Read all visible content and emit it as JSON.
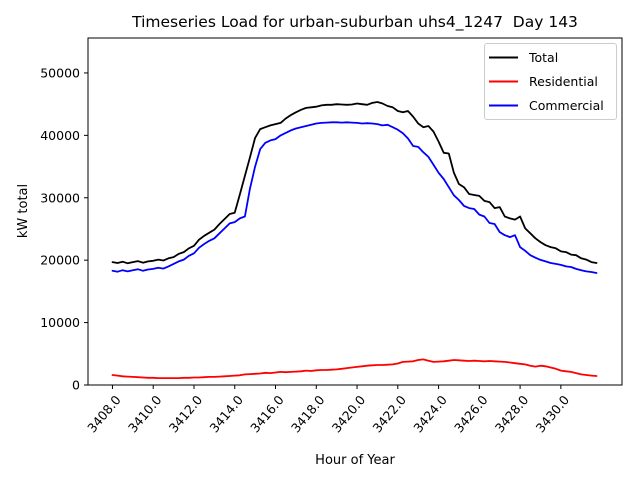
{
  "figure": {
    "background": "#ffffff",
    "axes_edge_color": "#000000",
    "legend_border_color": "#cccccc"
  },
  "chart_data": {
    "type": "line",
    "title": "Timeseries Load for urban-suburban uhs4_1247  Day 143",
    "xlabel": "Hour of Year",
    "ylabel": "kW total",
    "xlim": [
      3406.8,
      3433.0
    ],
    "ylim": [
      0,
      55600
    ],
    "grid": false,
    "legend_position": "upper right",
    "xticks": {
      "values": [
        3408,
        3410,
        3412,
        3414,
        3416,
        3418,
        3420,
        3422,
        3424,
        3426,
        3428,
        3430
      ],
      "labels": [
        "3408.0",
        "3410.0",
        "3412.0",
        "3414.0",
        "3416.0",
        "3418.0",
        "3420.0",
        "3422.0",
        "3424.0",
        "3426.0",
        "3428.0",
        "3430.0"
      ]
    },
    "yticks": {
      "values": [
        0,
        10000,
        20000,
        30000,
        40000,
        50000
      ],
      "labels": [
        "0",
        "10000",
        "20000",
        "30000",
        "40000",
        "50000"
      ]
    },
    "x": [
      3408.0,
      3408.25,
      3408.5,
      3408.75,
      3409.0,
      3409.25,
      3409.5,
      3409.75,
      3410.0,
      3410.25,
      3410.5,
      3410.75,
      3411.0,
      3411.25,
      3411.5,
      3411.75,
      3412.0,
      3412.25,
      3412.5,
      3412.75,
      3413.0,
      3413.25,
      3413.5,
      3413.75,
      3414.0,
      3414.25,
      3414.5,
      3414.75,
      3415.0,
      3415.25,
      3415.5,
      3415.75,
      3416.0,
      3416.25,
      3416.5,
      3416.75,
      3417.0,
      3417.25,
      3417.5,
      3417.75,
      3418.0,
      3418.25,
      3418.5,
      3418.75,
      3419.0,
      3419.25,
      3419.5,
      3419.75,
      3420.0,
      3420.25,
      3420.5,
      3420.75,
      3421.0,
      3421.25,
      3421.5,
      3421.75,
      3422.0,
      3422.25,
      3422.5,
      3422.75,
      3423.0,
      3423.25,
      3423.5,
      3423.75,
      3424.0,
      3424.25,
      3424.5,
      3424.75,
      3425.0,
      3425.25,
      3425.5,
      3425.75,
      3426.0,
      3426.25,
      3426.5,
      3426.75,
      3427.0,
      3427.25,
      3427.5,
      3427.75,
      3428.0,
      3428.25,
      3428.5,
      3428.75,
      3429.0,
      3429.25,
      3429.5,
      3429.75,
      3430.0,
      3430.25,
      3430.5,
      3430.75,
      3431.0,
      3431.25,
      3431.5,
      3431.75
    ],
    "series": [
      {
        "name": "Total",
        "color": "#000000",
        "values": [
          19700,
          19550,
          19750,
          19500,
          19700,
          19850,
          19600,
          19800,
          19900,
          20100,
          19950,
          20300,
          20500,
          21000,
          21300,
          21900,
          22300,
          23300,
          23900,
          24400,
          24900,
          25800,
          26600,
          27400,
          27600,
          30500,
          33500,
          36500,
          39600,
          41000,
          41300,
          41600,
          41800,
          42000,
          42700,
          43250,
          43700,
          44100,
          44400,
          44500,
          44600,
          44800,
          44900,
          44900,
          45000,
          44950,
          44900,
          44950,
          45100,
          45000,
          44900,
          45200,
          45350,
          45100,
          44700,
          44500,
          43900,
          43700,
          43900,
          43000,
          41900,
          41300,
          41500,
          40600,
          39000,
          37200,
          37100,
          34000,
          32200,
          31700,
          30600,
          30450,
          30300,
          29500,
          29300,
          28350,
          28500,
          27000,
          26700,
          26500,
          27000,
          25100,
          24300,
          23500,
          22900,
          22400,
          22100,
          21900,
          21400,
          21300,
          20900,
          20800,
          20300,
          20100,
          19700,
          19550
        ]
      },
      {
        "name": "Residential",
        "color": "#ff0000",
        "values": [
          1600,
          1500,
          1400,
          1350,
          1300,
          1250,
          1200,
          1150,
          1150,
          1100,
          1100,
          1100,
          1100,
          1100,
          1150,
          1150,
          1200,
          1200,
          1250,
          1300,
          1300,
          1350,
          1400,
          1450,
          1500,
          1550,
          1700,
          1750,
          1800,
          1850,
          1950,
          1900,
          2000,
          2100,
          2050,
          2100,
          2150,
          2200,
          2300,
          2250,
          2350,
          2400,
          2400,
          2450,
          2500,
          2600,
          2700,
          2800,
          2900,
          3000,
          3100,
          3150,
          3200,
          3200,
          3250,
          3300,
          3450,
          3700,
          3750,
          3800,
          4000,
          4100,
          3900,
          3700,
          3750,
          3800,
          3900,
          4000,
          3950,
          3900,
          3850,
          3900,
          3850,
          3800,
          3850,
          3800,
          3750,
          3700,
          3600,
          3500,
          3400,
          3300,
          3100,
          2950,
          3100,
          3000,
          2800,
          2600,
          2300,
          2200,
          2100,
          1900,
          1700,
          1600,
          1500,
          1450
        ]
      },
      {
        "name": "Commercial",
        "color": "#0000ff",
        "values": [
          18300,
          18150,
          18400,
          18200,
          18400,
          18550,
          18300,
          18500,
          18600,
          18800,
          18650,
          19000,
          19400,
          19800,
          20100,
          20700,
          21100,
          22000,
          22600,
          23100,
          23500,
          24300,
          25100,
          25900,
          26100,
          26700,
          27000,
          31500,
          35000,
          37800,
          38800,
          39200,
          39400,
          40000,
          40400,
          40800,
          41100,
          41300,
          41500,
          41700,
          41900,
          42000,
          42050,
          42100,
          42100,
          42050,
          42100,
          42050,
          42000,
          41900,
          41950,
          41900,
          41800,
          41600,
          41700,
          41300,
          40900,
          40350,
          39500,
          38300,
          38150,
          37300,
          36550,
          35300,
          34000,
          33000,
          31700,
          30400,
          29650,
          28700,
          28350,
          28200,
          27300,
          27000,
          25950,
          25800,
          24500,
          24000,
          23700,
          24000,
          22100,
          21500,
          20800,
          20400,
          20050,
          19800,
          19550,
          19400,
          19250,
          19000,
          18900,
          18600,
          18400,
          18200,
          18100,
          17950
        ]
      }
    ]
  }
}
